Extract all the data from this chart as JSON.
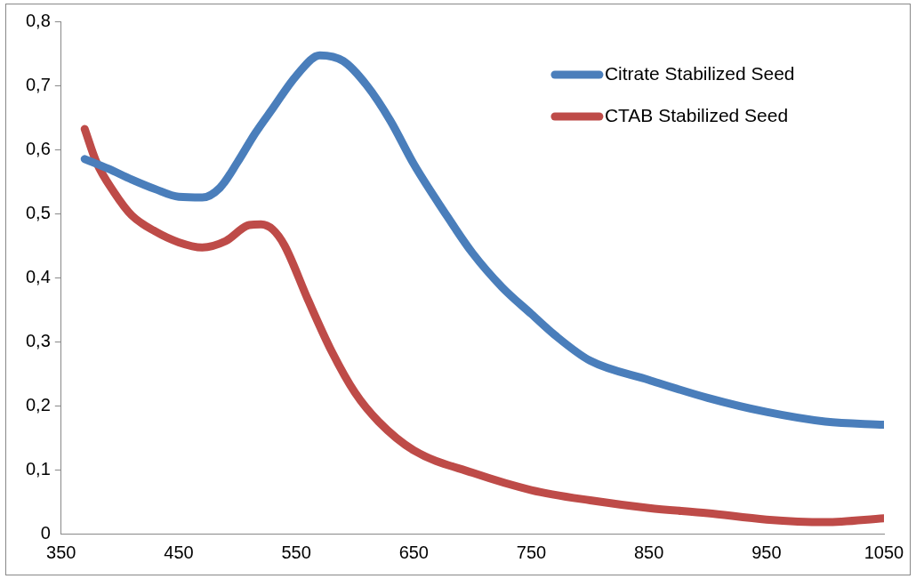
{
  "chart_data": {
    "type": "line",
    "xlim": [
      350,
      1050
    ],
    "xticks": [
      350,
      450,
      550,
      650,
      750,
      850,
      950,
      1050
    ],
    "ylim": [
      0,
      0.8
    ],
    "yticks": [
      {
        "value": 0,
        "label": "0"
      },
      {
        "value": 0.1,
        "label": "0,1"
      },
      {
        "value": 0.2,
        "label": "0,2"
      },
      {
        "value": 0.3,
        "label": "0,3"
      },
      {
        "value": 0.4,
        "label": "0,4"
      },
      {
        "value": 0.5,
        "label": "0,5"
      },
      {
        "value": 0.6,
        "label": "0,6"
      },
      {
        "value": 0.7,
        "label": "0,7"
      },
      {
        "value": 0.8,
        "label": "0,8"
      }
    ],
    "grid": false,
    "legend": "top right",
    "marker": "none",
    "line_style": "solid",
    "series": [
      {
        "name": "Citrate Stabilized Seed",
        "color": "#4a7ebb",
        "x": [
          370,
          390,
          410,
          430,
          450,
          470,
          485,
          500,
          515,
          530,
          550,
          570,
          590,
          610,
          630,
          650,
          675,
          700,
          725,
          750,
          770,
          800,
          850,
          900,
          950,
          1000,
          1050
        ],
        "values": [
          0.585,
          0.57,
          0.553,
          0.538,
          0.526,
          0.525,
          0.54,
          0.58,
          0.625,
          0.664,
          0.715,
          0.747,
          0.738,
          0.7,
          0.645,
          0.577,
          0.505,
          0.438,
          0.385,
          0.343,
          0.31,
          0.27,
          0.24,
          0.212,
          0.19,
          0.175,
          0.17
        ]
      },
      {
        "name": "CTAB Stabilized Seed",
        "color": "#be4b48",
        "x": [
          370,
          380,
          395,
          410,
          430,
          450,
          470,
          490,
          510,
          520,
          530,
          540,
          560,
          580,
          600,
          620,
          650,
          700,
          750,
          800,
          850,
          900,
          950,
          1000,
          1050
        ],
        "values": [
          0.632,
          0.58,
          0.533,
          0.497,
          0.472,
          0.455,
          0.447,
          0.457,
          0.482,
          0.483,
          0.475,
          0.45,
          0.365,
          0.285,
          0.22,
          0.175,
          0.13,
          0.095,
          0.068,
          0.052,
          0.04,
          0.032,
          0.022,
          0.018,
          0.024
        ]
      }
    ]
  }
}
